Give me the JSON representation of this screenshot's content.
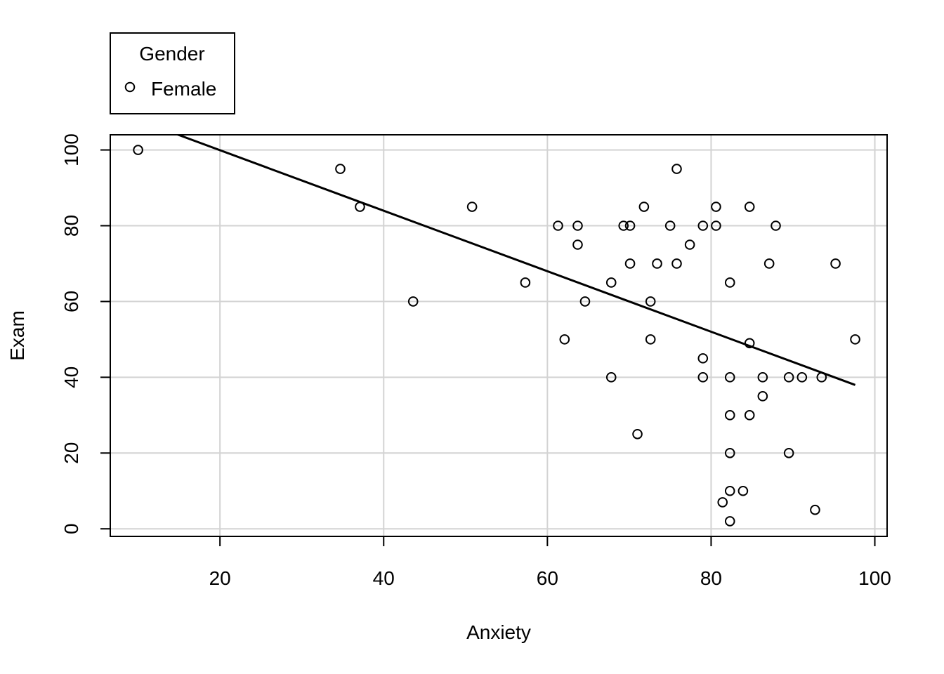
{
  "chart_data": {
    "type": "scatter",
    "xlabel": "Anxiety",
    "ylabel": "Exam",
    "xlim": [
      6.6,
      101.5
    ],
    "ylim": [
      -2,
      104
    ],
    "x_ticks": [
      20,
      40,
      60,
      80,
      100
    ],
    "y_ticks": [
      0,
      20,
      40,
      60,
      80,
      100
    ],
    "grid": true,
    "legend": {
      "title": "Gender",
      "placement": "top-left",
      "entries": [
        "Female"
      ]
    },
    "series": [
      {
        "name": "Female",
        "marker": "open-circle",
        "points": [
          [
            10.0,
            100
          ],
          [
            34.7,
            95
          ],
          [
            37.1,
            85
          ],
          [
            43.6,
            60
          ],
          [
            50.8,
            85
          ],
          [
            57.3,
            65
          ],
          [
            61.3,
            80
          ],
          [
            62.1,
            50
          ],
          [
            63.7,
            80
          ],
          [
            63.7,
            75
          ],
          [
            64.6,
            60
          ],
          [
            67.8,
            65
          ],
          [
            67.8,
            40
          ],
          [
            69.3,
            80
          ],
          [
            70.1,
            80
          ],
          [
            70.1,
            70
          ],
          [
            71.0,
            25
          ],
          [
            71.8,
            85
          ],
          [
            72.6,
            60
          ],
          [
            72.6,
            50
          ],
          [
            73.4,
            70
          ],
          [
            75.0,
            80
          ],
          [
            75.8,
            95
          ],
          [
            75.8,
            70
          ],
          [
            77.4,
            75
          ],
          [
            79.0,
            80
          ],
          [
            79.0,
            45
          ],
          [
            79.0,
            40
          ],
          [
            80.6,
            85
          ],
          [
            80.6,
            80
          ],
          [
            81.4,
            7
          ],
          [
            82.3,
            65
          ],
          [
            82.3,
            40
          ],
          [
            82.3,
            30
          ],
          [
            82.3,
            20
          ],
          [
            82.3,
            10
          ],
          [
            82.3,
            2
          ],
          [
            83.9,
            10
          ],
          [
            84.7,
            85
          ],
          [
            84.7,
            49
          ],
          [
            84.7,
            30
          ],
          [
            86.3,
            40
          ],
          [
            86.3,
            35
          ],
          [
            87.1,
            70
          ],
          [
            87.9,
            80
          ],
          [
            89.5,
            40
          ],
          [
            89.5,
            20
          ],
          [
            91.1,
            40
          ],
          [
            92.7,
            5
          ],
          [
            93.5,
            40
          ],
          [
            95.2,
            70
          ],
          [
            97.6,
            50
          ]
        ]
      }
    ],
    "regression_line": {
      "x_start": 10.0,
      "x_end": 97.6,
      "intercept": 115.9,
      "slope": -0.7985
    },
    "colors": {
      "grid": "#d3d3d3",
      "marks": "#000000",
      "background": "#ffffff"
    }
  }
}
